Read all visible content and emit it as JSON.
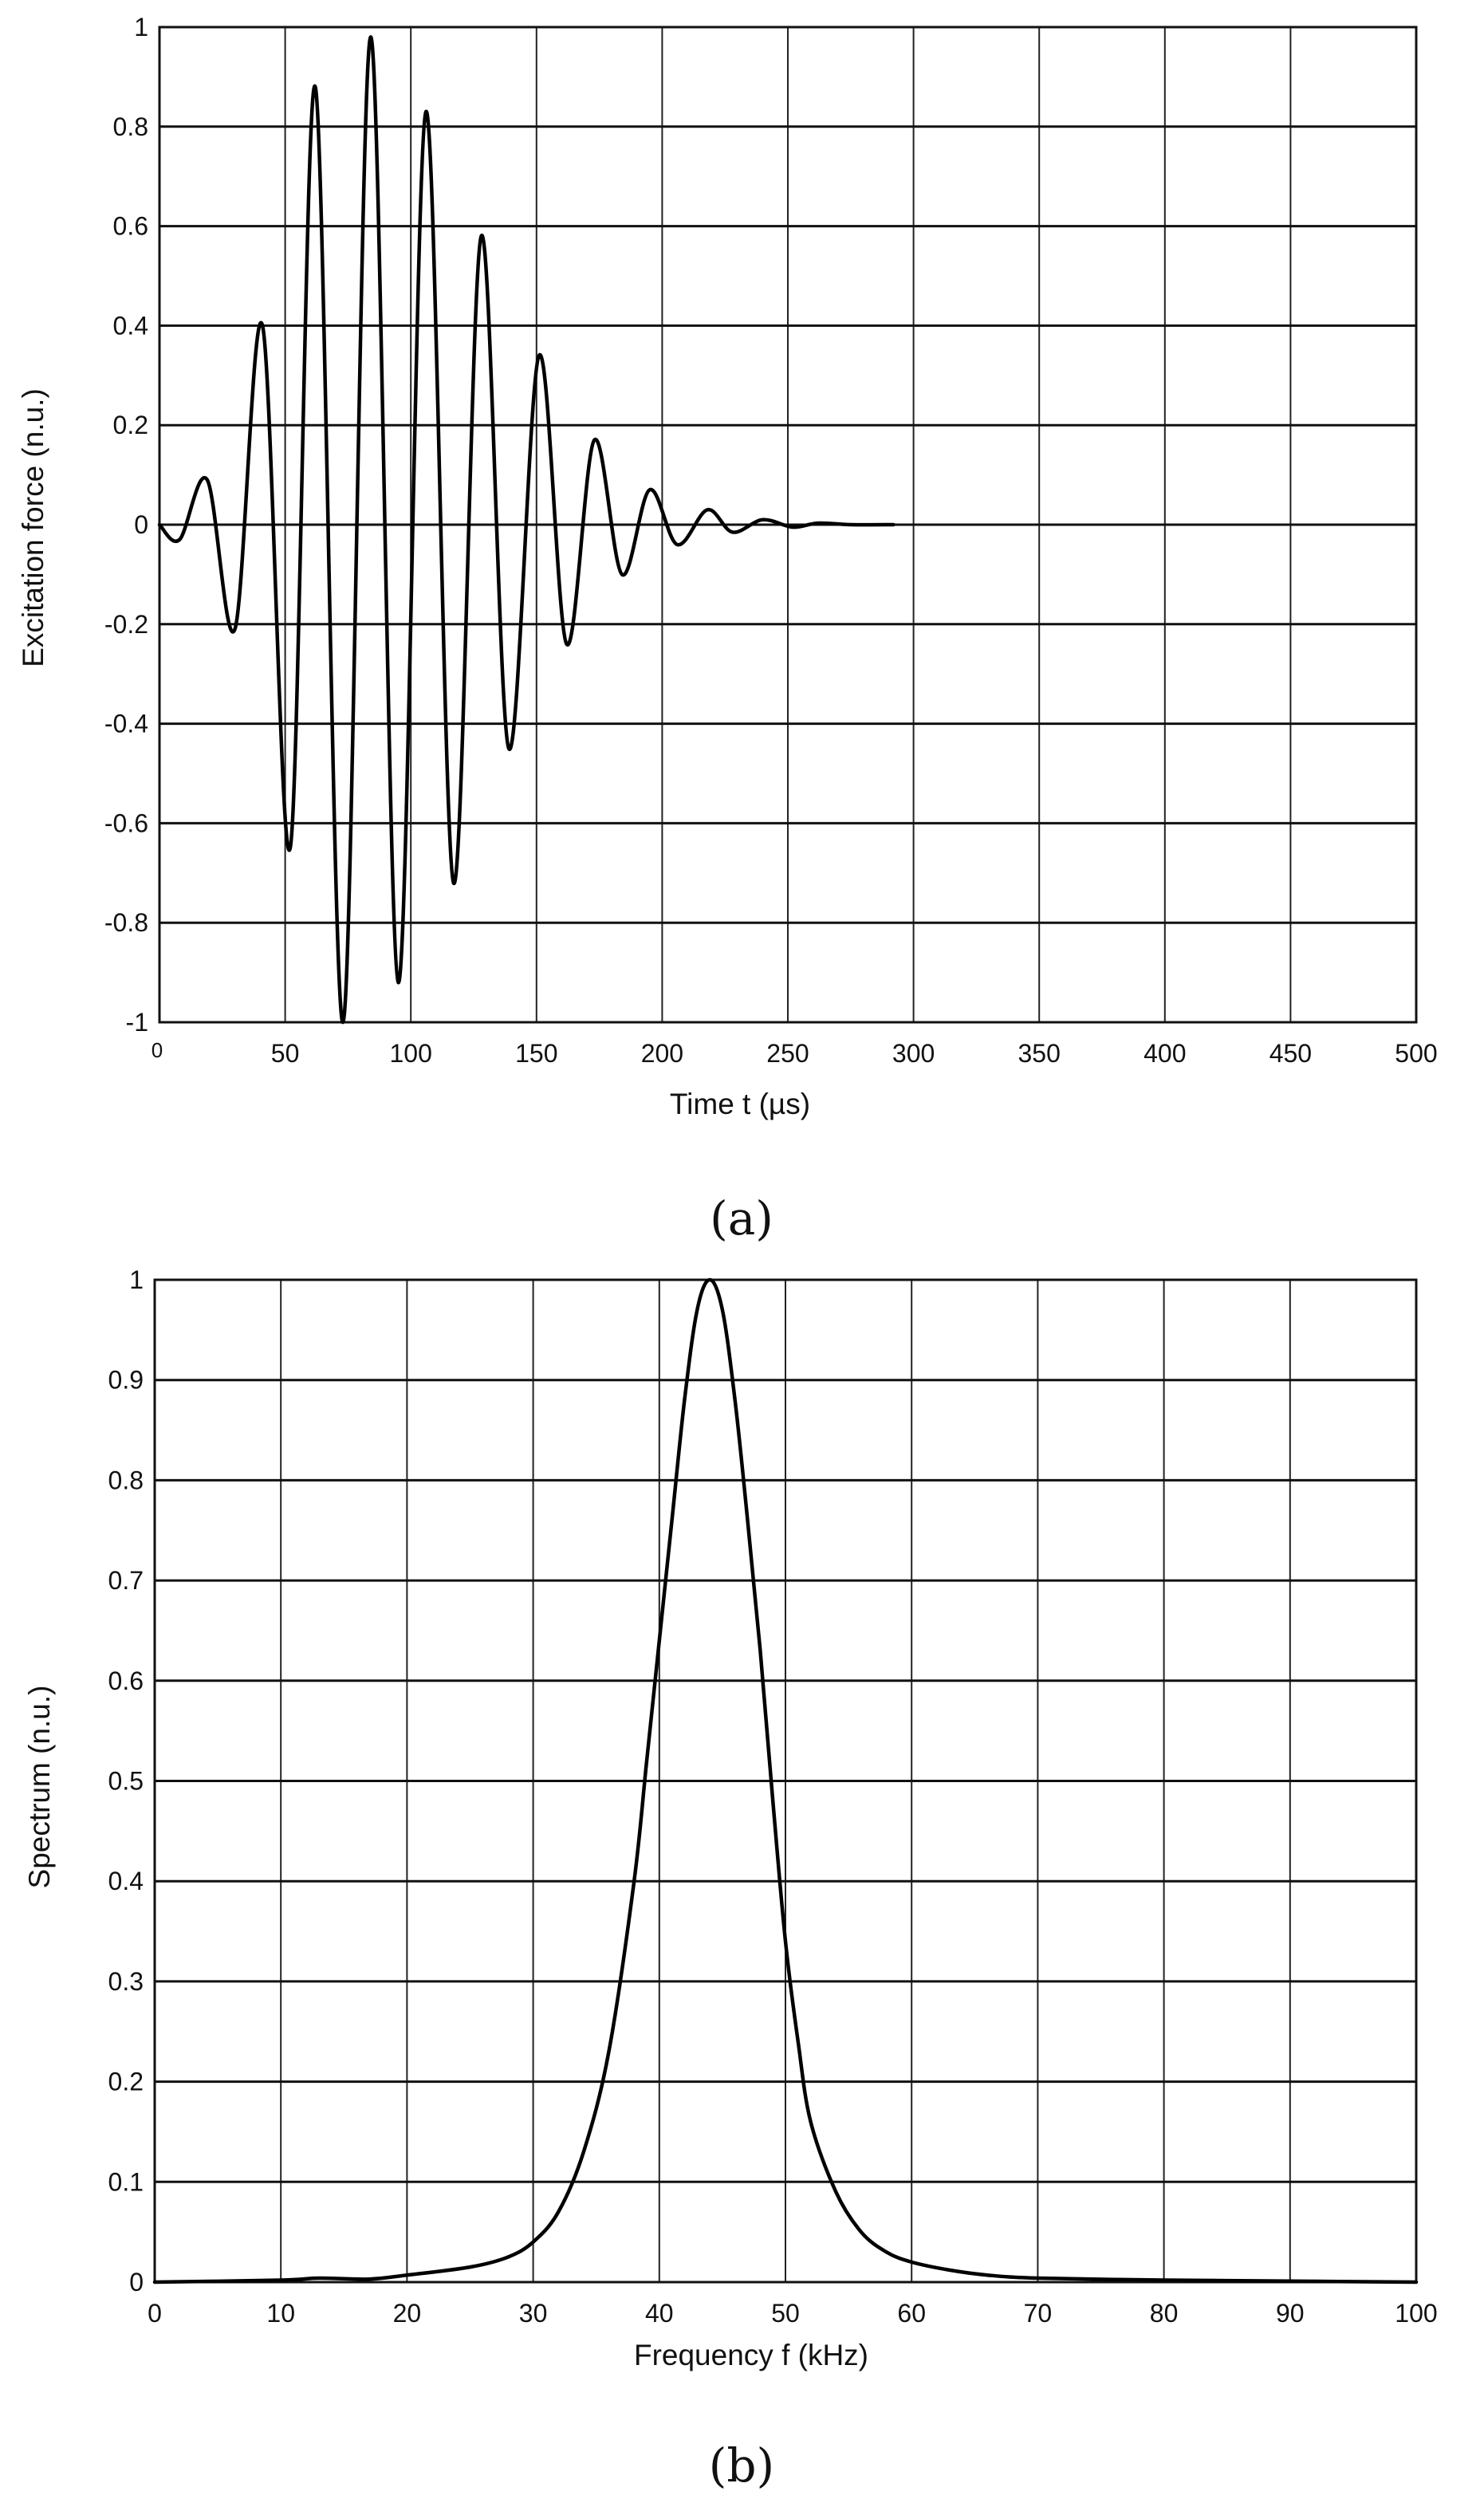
{
  "chart_data": [
    {
      "type": "line",
      "panel_label": "(a)",
      "xlabel": "Time t (µs)",
      "ylabel": "Excitation force (n.u.)",
      "xlim": [
        0,
        500
      ],
      "ylim": [
        -1,
        1
      ],
      "x_ticks": [
        0,
        50,
        100,
        150,
        200,
        250,
        300,
        350,
        400,
        450,
        500
      ],
      "y_ticks": [
        1,
        0.8,
        0.6,
        0.4,
        0.2,
        0,
        -0.2,
        -0.4,
        -0.6,
        -0.8,
        -1
      ],
      "x_tick_labels": [
        "0",
        "50",
        "100",
        "150",
        "200",
        "250",
        "300",
        "350",
        "400",
        "450",
        "500"
      ],
      "y_tick_labels": [
        "1",
        "0.8",
        "0.6",
        "0.4",
        "0.2",
        "0",
        "-0.2",
        "-0.4",
        "-0.6",
        "-0.8",
        "-1"
      ],
      "grid": true,
      "series": [
        {
          "x": [
            0,
            8,
            19,
            30,
            41,
            52,
            62,
            73,
            84,
            95,
            106,
            117,
            128,
            139,
            151,
            162,
            173,
            184,
            195,
            206,
            218,
            228,
            240,
            252,
            262,
            275,
            292
          ],
          "y": [
            0,
            -0.03,
            0.09,
            -0.21,
            0.4,
            -0.65,
            0.88,
            -1.0,
            0.98,
            -0.92,
            0.83,
            -0.72,
            0.58,
            -0.45,
            0.34,
            -0.24,
            0.17,
            -0.1,
            0.07,
            -0.04,
            0.03,
            -0.015,
            0.01,
            -0.005,
            0.003,
            0,
            0
          ]
        }
      ]
    },
    {
      "type": "line",
      "panel_label": "(b)",
      "xlabel": "Frequency f (kHz)",
      "ylabel": "Spectrum (n.u.)",
      "xlim": [
        0,
        100
      ],
      "ylim": [
        0,
        1
      ],
      "x_ticks": [
        0,
        10,
        20,
        30,
        40,
        50,
        60,
        70,
        80,
        90,
        100
      ],
      "y_ticks": [
        1,
        0.9,
        0.8,
        0.7,
        0.6,
        0.5,
        0.4,
        0.3,
        0.2,
        0.1,
        0
      ],
      "x_tick_labels": [
        "0",
        "10",
        "20",
        "30",
        "40",
        "50",
        "60",
        "70",
        "80",
        "90",
        "100"
      ],
      "y_tick_labels": [
        "1",
        "0.9",
        "0.8",
        "0.7",
        "0.6",
        "0.5",
        "0.4",
        "0.3",
        "0.2",
        "0.1",
        "0"
      ],
      "grid": true,
      "series": [
        {
          "x": [
            0,
            10,
            13,
            17,
            20,
            25,
            28,
            30,
            32,
            34,
            36,
            38,
            39,
            40,
            41,
            42,
            43,
            44,
            45,
            46,
            47,
            48,
            49,
            50,
            51,
            52,
            54,
            56,
            58,
            60,
            63,
            66,
            70,
            80,
            90,
            100
          ],
          "y": [
            0,
            0.002,
            0.004,
            0.003,
            0.007,
            0.015,
            0.025,
            0.04,
            0.07,
            0.13,
            0.23,
            0.4,
            0.52,
            0.64,
            0.76,
            0.88,
            0.97,
            1.0,
            0.97,
            0.88,
            0.76,
            0.63,
            0.48,
            0.34,
            0.24,
            0.16,
            0.09,
            0.05,
            0.03,
            0.02,
            0.012,
            0.007,
            0.004,
            0.002,
            0.001,
            0
          ]
        }
      ]
    }
  ]
}
